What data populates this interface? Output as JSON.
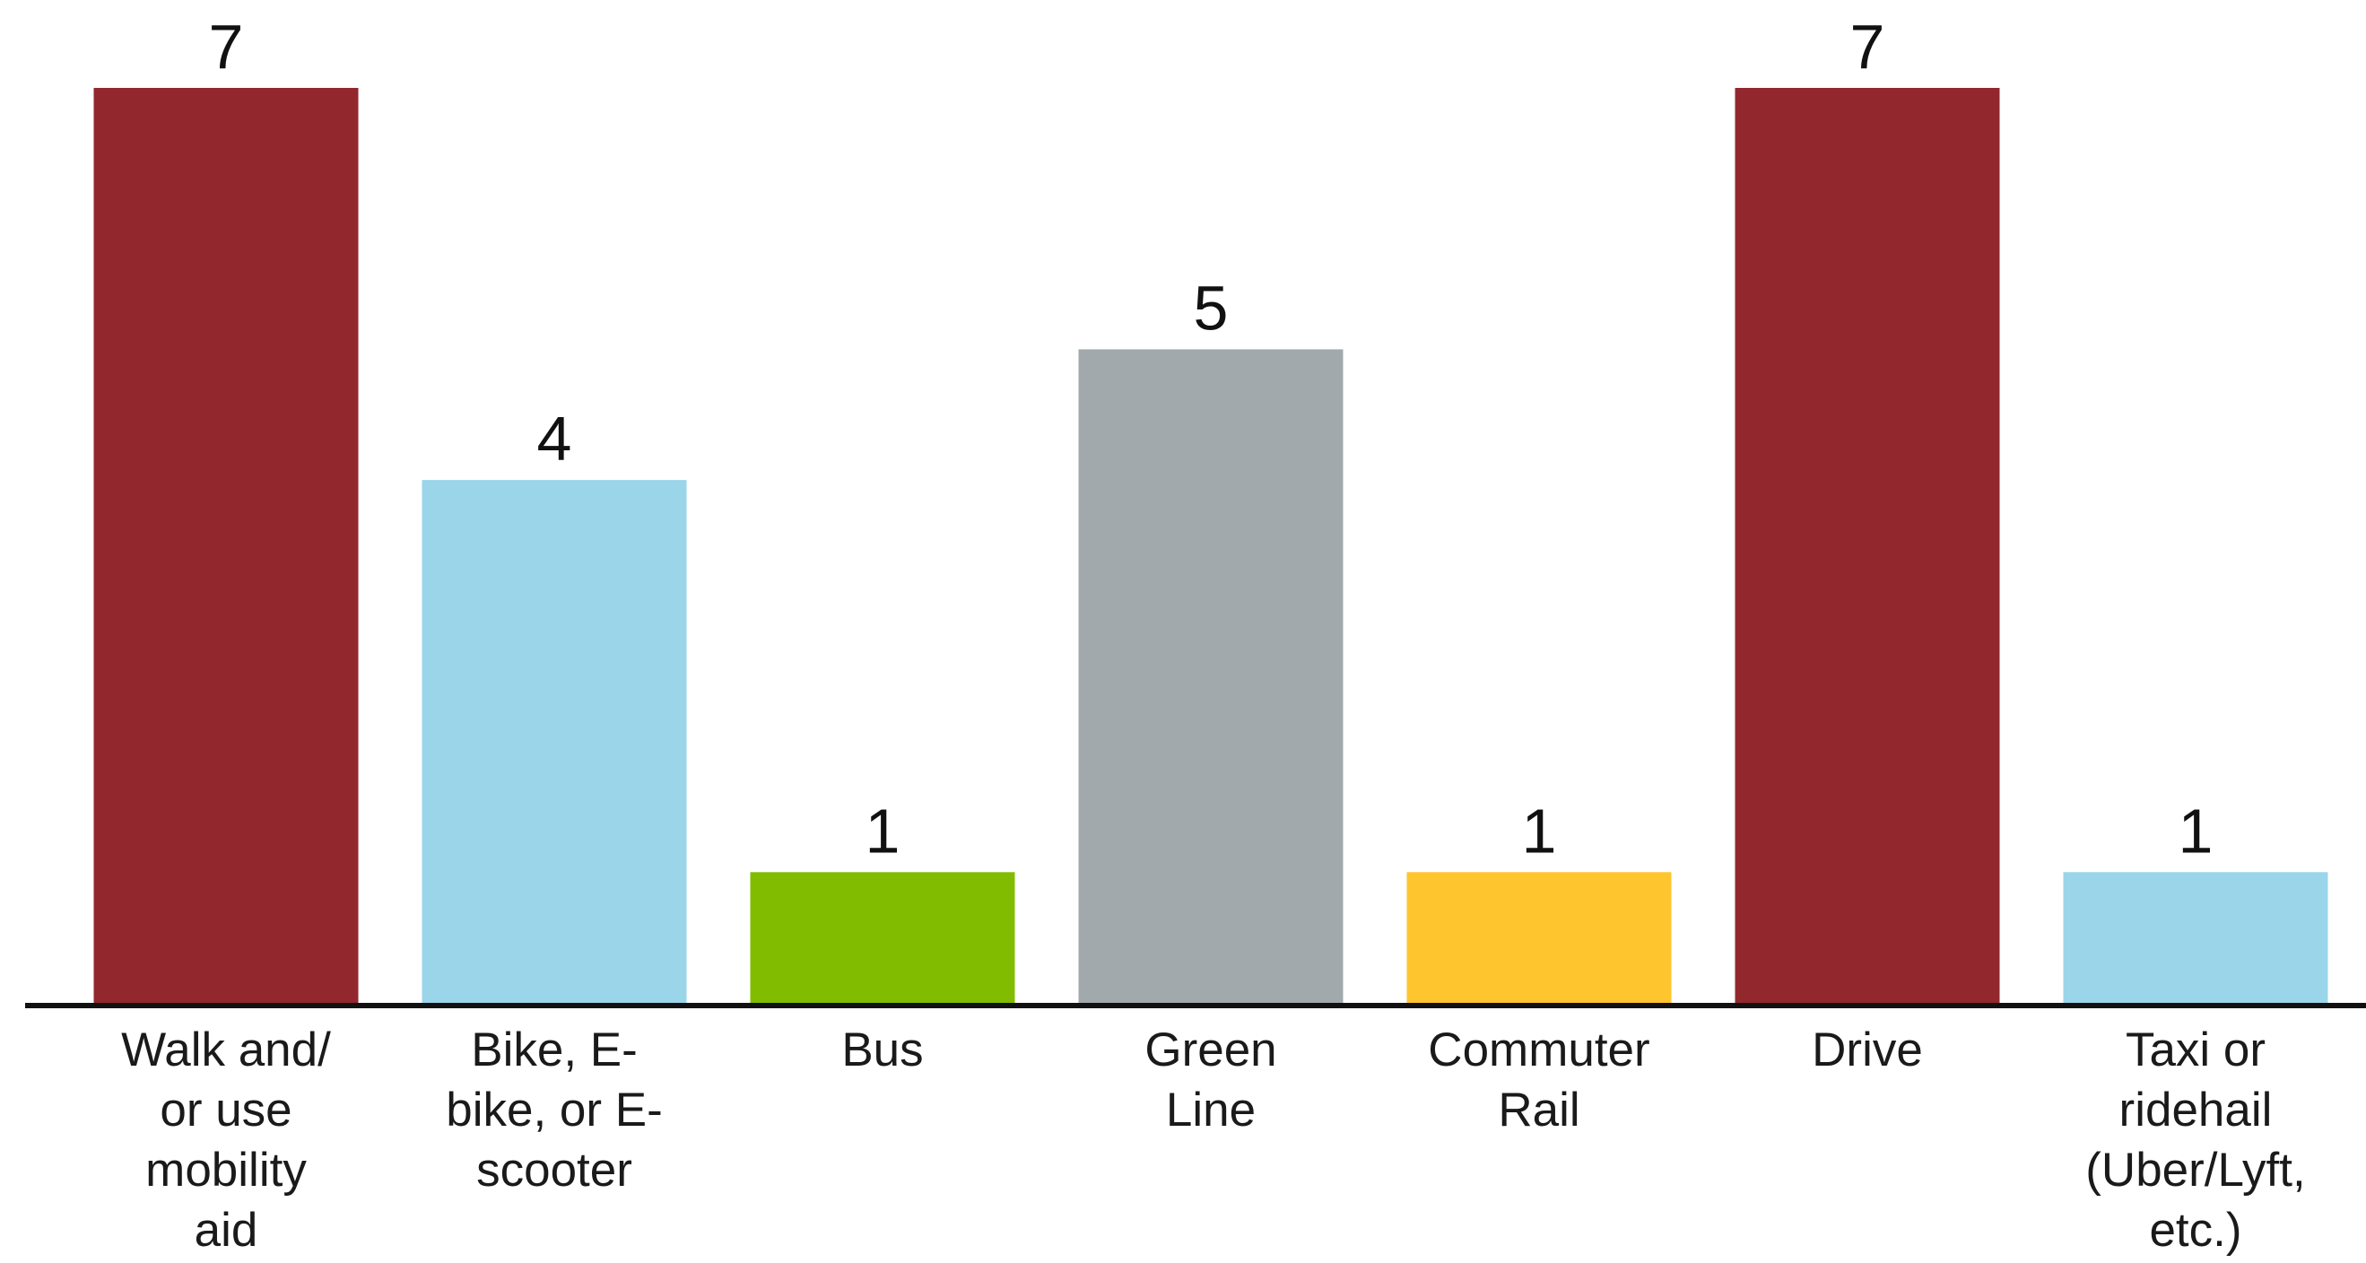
{
  "chart_data": {
    "type": "bar",
    "title": "",
    "xlabel": "",
    "ylabel": "",
    "ylim": [
      0,
      7
    ],
    "grid": false,
    "legend": "none",
    "categories": [
      "Walk and/ or use mobility aid",
      "Bike, E- bike, or E- scooter",
      "Bus",
      "Green Line",
      "Commuter Rail",
      "Drive",
      "Taxi or ridehail (Uber/Lyft, etc.)"
    ],
    "category_lines": [
      [
        "Walk and/",
        "or use",
        "mobility",
        "aid"
      ],
      [
        "Bike, E-",
        "bike, or E-",
        "scooter"
      ],
      [
        "Bus"
      ],
      [
        "Green",
        "Line"
      ],
      [
        "Commuter",
        "Rail"
      ],
      [
        "Drive"
      ],
      [
        "Taxi or",
        "ridehail",
        "(Uber/Lyft,",
        "etc.)"
      ]
    ],
    "values": [
      7,
      4,
      1,
      5,
      1,
      7,
      1
    ],
    "data_labels": [
      "7",
      "4",
      "1",
      "5",
      "1",
      "7",
      "1"
    ],
    "colors": [
      "#92272d",
      "#9ad5ea",
      "#82bc00",
      "#a2a9ad",
      "#ffc52f",
      "#92272d",
      "#9ad5ea"
    ],
    "axis_color": "#111111"
  }
}
